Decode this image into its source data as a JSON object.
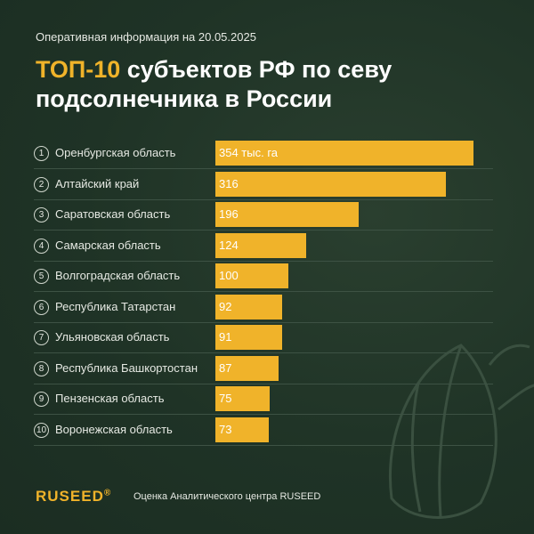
{
  "header": {
    "date_line": "Оперативная информация на 20.05.2025",
    "title_accent": "ТОП-10",
    "title_rest": " субъектов РФ по севу подсолнечника в России"
  },
  "chart_data": {
    "type": "bar",
    "orientation": "horizontal",
    "title": "ТОП-10 субъектов РФ по севу подсолнечника в России",
    "unit": "тыс. га",
    "categories": [
      "Оренбургская область",
      "Алтайский край",
      "Саратовская область",
      "Самарская область",
      "Волгоградская область",
      "Республика Татарстан",
      "Ульяновская область",
      "Республика Башкортостан",
      "Пензенская область",
      "Воронежская область"
    ],
    "ranks": [
      "1",
      "2",
      "3",
      "4",
      "5",
      "6",
      "7",
      "8",
      "9",
      "10"
    ],
    "values": [
      354,
      316,
      196,
      124,
      100,
      92,
      91,
      87,
      75,
      73
    ],
    "value_labels": [
      "354 тыс. га",
      "316",
      "196",
      "124",
      "100",
      "92",
      "91",
      "87",
      "75",
      "73"
    ],
    "xlim": [
      0,
      354
    ]
  },
  "footer": {
    "brand": "RUSEED",
    "brand_mark": "®",
    "note": "Оценка Аналитического центра RUSEED"
  },
  "colors": {
    "background": "#1f3326",
    "accent": "#f0b32a",
    "text": "#e6e9e3"
  }
}
